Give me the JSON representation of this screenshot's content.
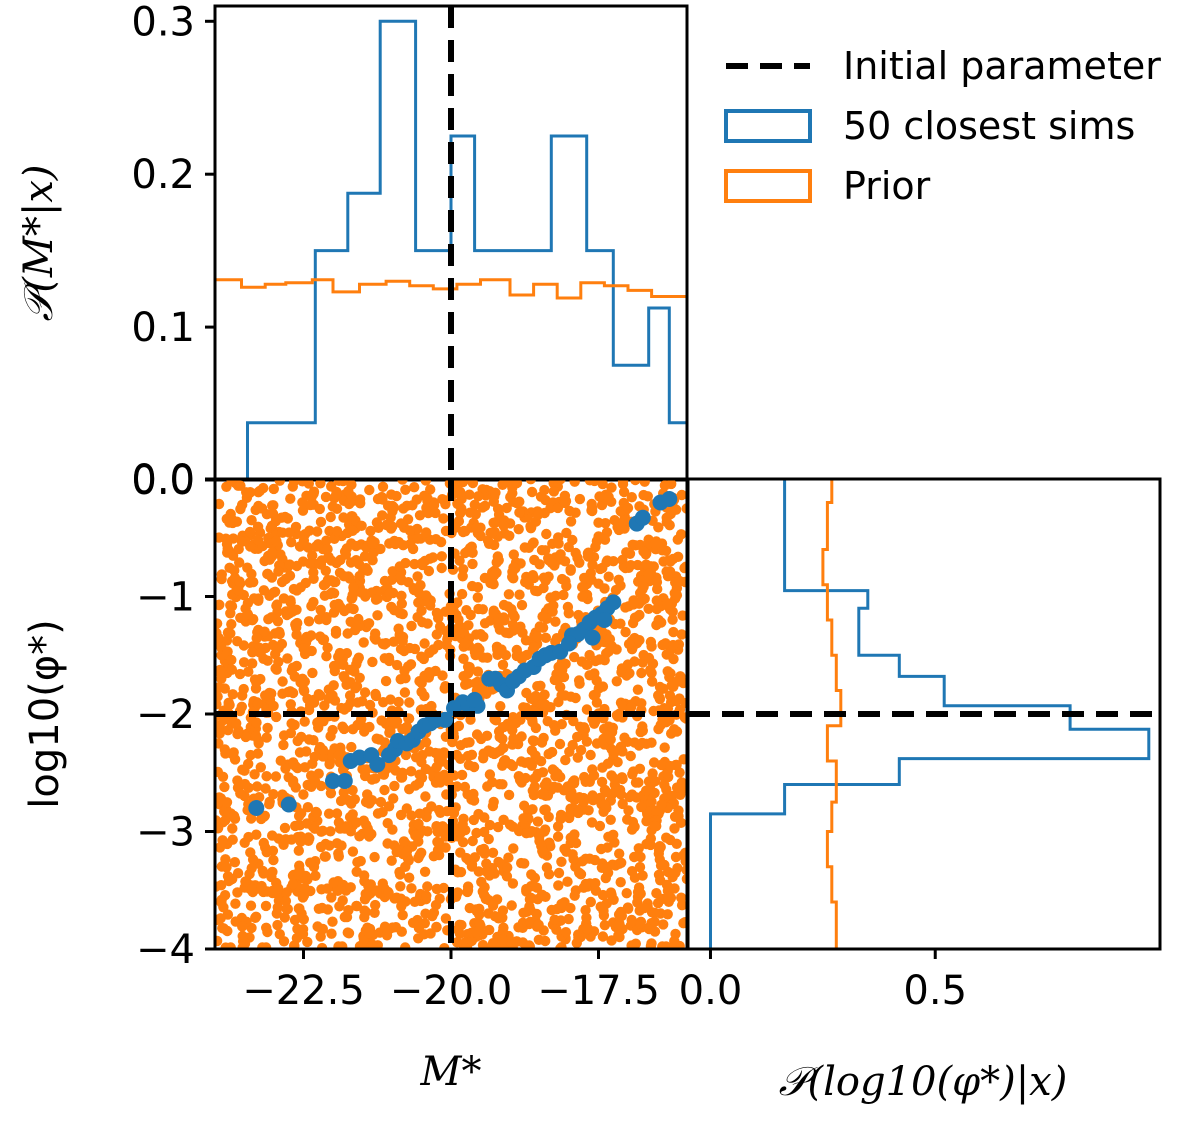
{
  "colors": {
    "blue": "#1f77b4",
    "orange": "#ff7f0e",
    "black": "#000000"
  },
  "legend": {
    "initial": "Initial parameter",
    "closest": "50 closest sims",
    "prior": "Prior"
  },
  "labels": {
    "top_ylabel": "𝒫(M*|x)",
    "main_xlabel": "M*",
    "main_ylabel": "log10(φ*)",
    "right_xlabel": "𝒫(log10(φ*)|x)"
  },
  "chart_data": [
    {
      "name": "top-marginal",
      "type": "step-histogram",
      "xlim": [
        -24.0,
        -16.0
      ],
      "ylim": [
        0.0,
        0.31
      ],
      "yticks": [
        {
          "v": 0.0,
          "label": "0.0"
        },
        {
          "v": 0.1,
          "label": "0.1"
        },
        {
          "v": 0.2,
          "label": "0.2"
        },
        {
          "v": 0.3,
          "label": "0.3"
        }
      ],
      "vline": -20.0,
      "series": [
        {
          "name": "50 closest sims",
          "edges": [
            -24.0,
            -23.45,
            -22.3,
            -21.75,
            -21.2,
            -20.6,
            -20.0,
            -19.6,
            -19.05,
            -18.3,
            -17.7,
            -17.25,
            -16.65,
            -16.3,
            -16.0
          ],
          "values": [
            0.0,
            0.0375,
            0.15,
            0.1875,
            0.3,
            0.15,
            0.225,
            0.15,
            0.15,
            0.225,
            0.15,
            0.075,
            0.1125,
            0.0375
          ]
        },
        {
          "name": "Prior",
          "edges": [
            -24.0,
            -23.55,
            -23.15,
            -22.8,
            -22.35,
            -22.0,
            -21.55,
            -21.1,
            -20.7,
            -20.3,
            -19.9,
            -19.5,
            -19.0,
            -18.6,
            -18.2,
            -17.8,
            -17.4,
            -17.0,
            -16.6,
            -16.0
          ],
          "values": [
            0.131,
            0.126,
            0.128,
            0.129,
            0.131,
            0.123,
            0.128,
            0.13,
            0.127,
            0.125,
            0.128,
            0.131,
            0.121,
            0.128,
            0.119,
            0.129,
            0.127,
            0.124,
            0.12
          ]
        }
      ]
    },
    {
      "name": "joint-scatter",
      "type": "scatter",
      "xlim": [
        -24.0,
        -16.0
      ],
      "ylim": [
        -4.0,
        0.0
      ],
      "xticks": [
        {
          "v": -22.5,
          "label": "−22.5"
        },
        {
          "v": -20.0,
          "label": "−20.0"
        },
        {
          "v": -17.5,
          "label": "−17.5"
        }
      ],
      "yticks": [
        {
          "v": 0,
          "label": "0.0"
        },
        {
          "v": -1,
          "label": "−1"
        },
        {
          "v": -2,
          "label": "−2"
        },
        {
          "v": -3,
          "label": "−3"
        },
        {
          "v": -4,
          "label": "−4"
        }
      ],
      "vline": -20.0,
      "hline": -2.0,
      "prior_samples": 2600,
      "closest_sims": [
        [
          -23.3,
          -2.8
        ],
        [
          -22.75,
          -2.77
        ],
        [
          -22.0,
          -2.57
        ],
        [
          -21.8,
          -2.57
        ],
        [
          -21.7,
          -2.4
        ],
        [
          -21.55,
          -2.37
        ],
        [
          -21.35,
          -2.35
        ],
        [
          -21.25,
          -2.43
        ],
        [
          -21.05,
          -2.35
        ],
        [
          -20.95,
          -2.3
        ],
        [
          -20.9,
          -2.23
        ],
        [
          -20.75,
          -2.25
        ],
        [
          -20.65,
          -2.22
        ],
        [
          -20.55,
          -2.15
        ],
        [
          -20.45,
          -2.1
        ],
        [
          -20.35,
          -2.08
        ],
        [
          -20.25,
          -2.05
        ],
        [
          -20.1,
          -2.05
        ],
        [
          -19.95,
          -1.95
        ],
        [
          -19.8,
          -1.9
        ],
        [
          -19.7,
          -1.93
        ],
        [
          -19.55,
          -1.93
        ],
        [
          -19.35,
          -1.7
        ],
        [
          -19.25,
          -1.7
        ],
        [
          -19.15,
          -1.75
        ],
        [
          -19.05,
          -1.8
        ],
        [
          -18.95,
          -1.72
        ],
        [
          -18.85,
          -1.68
        ],
        [
          -18.75,
          -1.63
        ],
        [
          -18.6,
          -1.6
        ],
        [
          -18.5,
          -1.53
        ],
        [
          -18.4,
          -1.5
        ],
        [
          -18.3,
          -1.48
        ],
        [
          -18.15,
          -1.47
        ],
        [
          -17.95,
          -1.33
        ],
        [
          -17.85,
          -1.32
        ],
        [
          -17.75,
          -1.28
        ],
        [
          -17.65,
          -1.22
        ],
        [
          -17.55,
          -1.18
        ],
        [
          -17.45,
          -1.15
        ],
        [
          -17.35,
          -1.1
        ],
        [
          -17.25,
          -1.05
        ],
        [
          -17.6,
          -1.35
        ],
        [
          -17.4,
          -1.2
        ],
        [
          -16.85,
          -0.38
        ],
        [
          -16.75,
          -0.33
        ],
        [
          -16.45,
          -0.2
        ],
        [
          -16.3,
          -0.17
        ],
        [
          -18.0,
          -1.4
        ],
        [
          -19.6,
          -1.88
        ]
      ]
    },
    {
      "name": "right-marginal",
      "type": "step-histogram-horizontal",
      "xlim": [
        -0.05,
        1.0
      ],
      "ylim": [
        -4.0,
        0.0
      ],
      "xticks": [
        {
          "v": 0.0,
          "label": "0.0"
        },
        {
          "v": 0.5,
          "label": "0.5"
        }
      ],
      "hline": -2.0,
      "series": [
        {
          "name": "50 closest sims",
          "edges": [
            -4.0,
            -2.85,
            -2.6,
            -2.38,
            -2.13,
            -1.93,
            -1.68,
            -1.5,
            -1.1,
            -0.95,
            0.0
          ],
          "values": [
            0.0,
            0.165,
            0.42,
            0.975,
            0.8,
            0.52,
            0.42,
            0.33,
            0.35,
            0.165
          ]
        },
        {
          "name": "Prior",
          "edges": [
            -4.0,
            -3.6,
            -3.3,
            -3.0,
            -2.75,
            -2.4,
            -2.1,
            -1.8,
            -1.5,
            -1.2,
            -0.9,
            -0.6,
            -0.2,
            0.0
          ],
          "values": [
            0.28,
            0.27,
            0.26,
            0.27,
            0.28,
            0.26,
            0.29,
            0.28,
            0.27,
            0.26,
            0.25,
            0.26,
            0.27
          ]
        }
      ]
    }
  ]
}
